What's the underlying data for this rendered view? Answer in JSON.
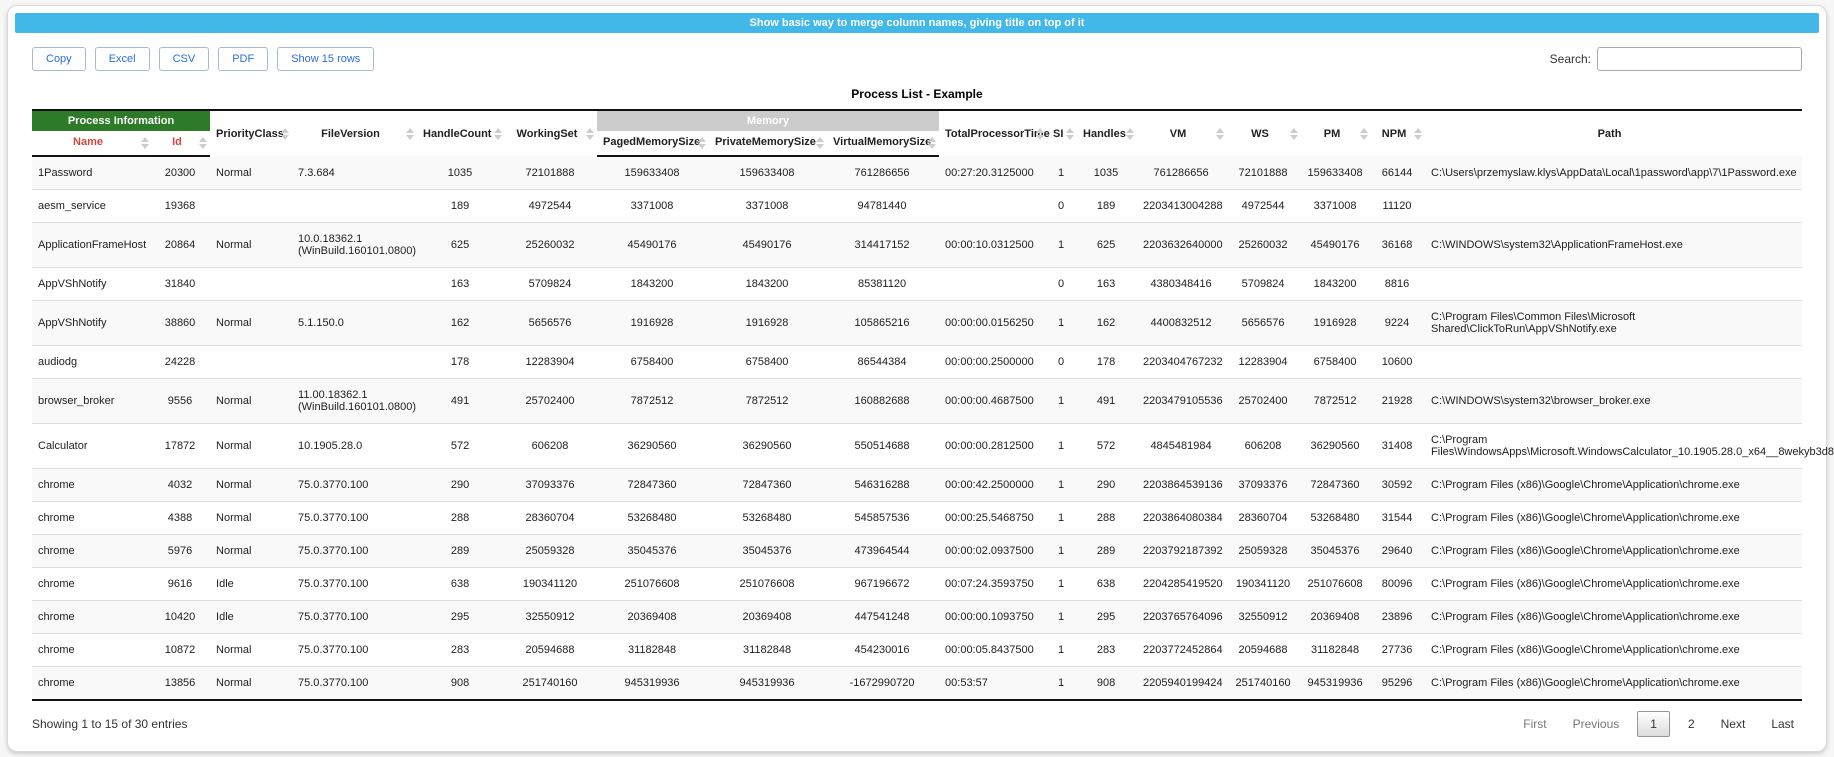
{
  "title_bar": {
    "text": "Show basic way to merge column names, giving title on top of it",
    "bg_color": "#41b8e8"
  },
  "toolbar": {
    "buttons": {
      "copy": "Copy",
      "excel": "Excel",
      "csv": "CSV",
      "pdf": "PDF",
      "show_rows": "Show 15 rows"
    }
  },
  "search": {
    "label": "Search:",
    "value": ""
  },
  "icons": {
    "sort": "up-down-triangles"
  },
  "colors": {
    "title_bar": "#41b8e8",
    "process_group": "#2d7a28",
    "memory_group": "#cccccc",
    "red_columns": "#d0463c",
    "button_text": "#2a6fdb"
  },
  "table": {
    "caption": "Process List - Example",
    "header": {
      "group_process": "Process Information",
      "group_memory": "Memory",
      "name": "Name",
      "id": "Id",
      "priority_class": "PriorityClass",
      "file_version": "FileVersion",
      "handle_count": "HandleCount",
      "working_set": "WorkingSet",
      "paged_memory_size": "PagedMemorySize",
      "private_memory_size": "PrivateMemorySize",
      "virtual_memory_size": "VirtualMemorySize",
      "total_processor_time": "TotalProcessorTime",
      "si": "SI",
      "handles": "Handles",
      "vm": "VM",
      "ws": "WS",
      "pm": "PM",
      "npm": "NPM",
      "path": "Path"
    },
    "rows": [
      [
        "1Password",
        "20300",
        "Normal",
        "7.3.684",
        "1035",
        "72101888",
        "159633408",
        "159633408",
        "761286656",
        "00:27:20.3125000",
        "1",
        "1035",
        "761286656",
        "72101888",
        "159633408",
        "66144",
        "C:\\Users\\przemyslaw.klys\\AppData\\Local\\1password\\app\\7\\1Password.exe"
      ],
      [
        "aesm_service",
        "19368",
        "",
        "",
        "189",
        "4972544",
        "3371008",
        "3371008",
        "94781440",
        "",
        "0",
        "189",
        "2203413004288",
        "4972544",
        "3371008",
        "11120",
        ""
      ],
      [
        "ApplicationFrameHost",
        "20864",
        "Normal",
        "10.0.18362.1 (WinBuild.160101.0800)",
        "625",
        "25260032",
        "45490176",
        "45490176",
        "314417152",
        "00:00:10.0312500",
        "1",
        "625",
        "2203632640000",
        "25260032",
        "45490176",
        "36168",
        "C:\\WINDOWS\\system32\\ApplicationFrameHost.exe"
      ],
      [
        "AppVShNotify",
        "31840",
        "",
        "",
        "163",
        "5709824",
        "1843200",
        "1843200",
        "85381120",
        "",
        "0",
        "163",
        "4380348416",
        "5709824",
        "1843200",
        "8816",
        ""
      ],
      [
        "AppVShNotify",
        "38860",
        "Normal",
        "5.1.150.0",
        "162",
        "5656576",
        "1916928",
        "1916928",
        "105865216",
        "00:00:00.0156250",
        "1",
        "162",
        "4400832512",
        "5656576",
        "1916928",
        "9224",
        "C:\\Program Files\\Common Files\\Microsoft Shared\\ClickToRun\\AppVShNotify.exe"
      ],
      [
        "audiodg",
        "24228",
        "",
        "",
        "178",
        "12283904",
        "6758400",
        "6758400",
        "86544384",
        "00:00:00.2500000",
        "0",
        "178",
        "2203404767232",
        "12283904",
        "6758400",
        "10600",
        ""
      ],
      [
        "browser_broker",
        "9556",
        "Normal",
        "11.00.18362.1 (WinBuild.160101.0800)",
        "491",
        "25702400",
        "7872512",
        "7872512",
        "160882688",
        "00:00:00.4687500",
        "1",
        "491",
        "2203479105536",
        "25702400",
        "7872512",
        "21928",
        "C:\\WINDOWS\\system32\\browser_broker.exe"
      ],
      [
        "Calculator",
        "17872",
        "Normal",
        "10.1905.28.0",
        "572",
        "606208",
        "36290560",
        "36290560",
        "550514688",
        "00:00:00.2812500",
        "1",
        "572",
        "4845481984",
        "606208",
        "36290560",
        "31408",
        "C:\\Program Files\\WindowsApps\\Microsoft.WindowsCalculator_10.1905.28.0_x64__8wekyb3d8"
      ],
      [
        "chrome",
        "4032",
        "Normal",
        "75.0.3770.100",
        "290",
        "37093376",
        "72847360",
        "72847360",
        "546316288",
        "00:00:42.2500000",
        "1",
        "290",
        "2203864539136",
        "37093376",
        "72847360",
        "30592",
        "C:\\Program Files (x86)\\Google\\Chrome\\Application\\chrome.exe"
      ],
      [
        "chrome",
        "4388",
        "Normal",
        "75.0.3770.100",
        "288",
        "28360704",
        "53268480",
        "53268480",
        "545857536",
        "00:00:25.5468750",
        "1",
        "288",
        "2203864080384",
        "28360704",
        "53268480",
        "31544",
        "C:\\Program Files (x86)\\Google\\Chrome\\Application\\chrome.exe"
      ],
      [
        "chrome",
        "5976",
        "Normal",
        "75.0.3770.100",
        "289",
        "25059328",
        "35045376",
        "35045376",
        "473964544",
        "00:00:02.0937500",
        "1",
        "289",
        "2203792187392",
        "25059328",
        "35045376",
        "29640",
        "C:\\Program Files (x86)\\Google\\Chrome\\Application\\chrome.exe"
      ],
      [
        "chrome",
        "9616",
        "Idle",
        "75.0.3770.100",
        "638",
        "190341120",
        "251076608",
        "251076608",
        "967196672",
        "00:07:24.3593750",
        "1",
        "638",
        "2204285419520",
        "190341120",
        "251076608",
        "80096",
        "C:\\Program Files (x86)\\Google\\Chrome\\Application\\chrome.exe"
      ],
      [
        "chrome",
        "10420",
        "Idle",
        "75.0.3770.100",
        "295",
        "32550912",
        "20369408",
        "20369408",
        "447541248",
        "00:00:00.1093750",
        "1",
        "295",
        "2203765764096",
        "32550912",
        "20369408",
        "23896",
        "C:\\Program Files (x86)\\Google\\Chrome\\Application\\chrome.exe"
      ],
      [
        "chrome",
        "10872",
        "Normal",
        "75.0.3770.100",
        "283",
        "20594688",
        "31182848",
        "31182848",
        "454230016",
        "00:00:05.8437500",
        "1",
        "283",
        "2203772452864",
        "20594688",
        "31182848",
        "27736",
        "C:\\Program Files (x86)\\Google\\Chrome\\Application\\chrome.exe"
      ],
      [
        "chrome",
        "13856",
        "Normal",
        "75.0.3770.100",
        "908",
        "251740160",
        "945319936",
        "945319936",
        "-1672990720",
        "00:53:57",
        "1",
        "908",
        "2205940199424",
        "251740160",
        "945319936",
        "95296",
        "C:\\Program Files (x86)\\Google\\Chrome\\Application\\chrome.exe"
      ]
    ]
  },
  "footer": {
    "info": "Showing 1 to 15 of 30 entries",
    "pagination": {
      "first": "First",
      "previous": "Previous",
      "page1": "1",
      "page2": "2",
      "next": "Next",
      "last": "Last"
    },
    "current_page": "1"
  }
}
